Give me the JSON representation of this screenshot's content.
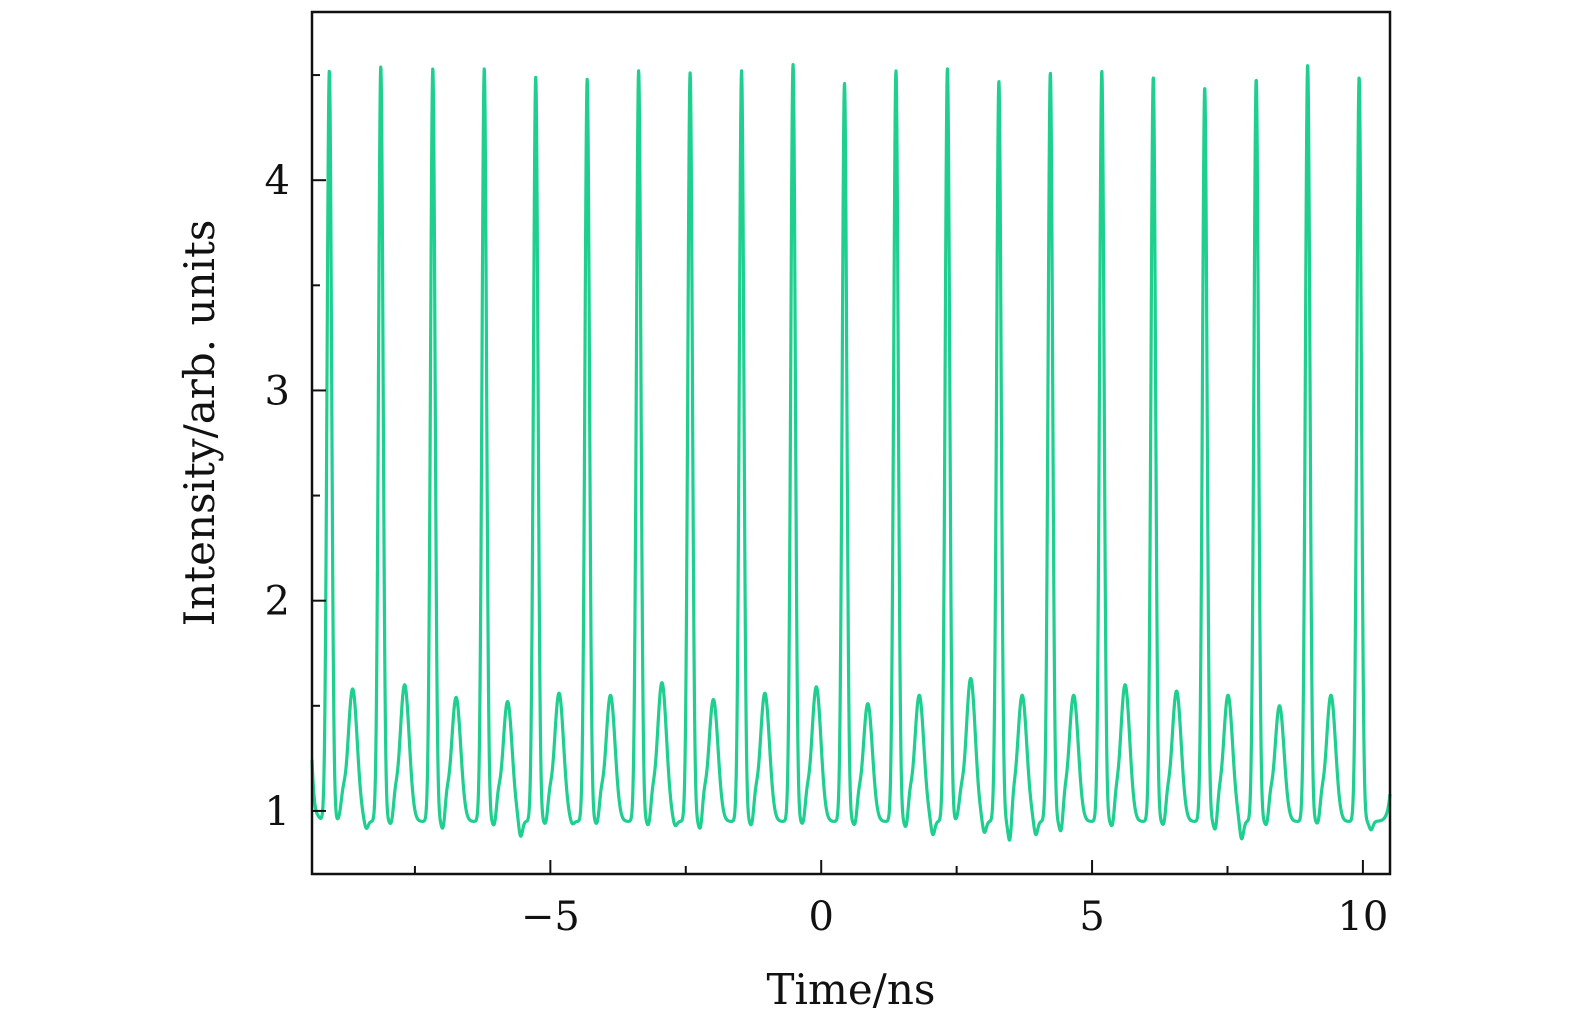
{
  "chart_data": {
    "type": "line",
    "title": "",
    "xlabel": "Time/ns",
    "ylabel": "Intensity/arb. units",
    "xlim": [
      -9.4,
      10.5
    ],
    "ylim": [
      0.7,
      4.8
    ],
    "grid": false,
    "legend": "none",
    "x_ticks": [
      -5,
      0,
      5,
      10
    ],
    "x_tick_labels": [
      "−5",
      "0",
      "5",
      "10"
    ],
    "x_minor_ticks": [
      -7.5,
      -2.5,
      2.5,
      7.5
    ],
    "y_ticks": [
      1,
      2,
      3,
      4
    ],
    "y_tick_labels": [
      "1",
      "2",
      "3",
      "4"
    ],
    "y_minor_ticks": [
      1.5,
      2.5,
      3.5,
      4.5
    ],
    "series": [
      {
        "name": "",
        "color": "#1ecf8f",
        "baseline": 0.95,
        "start_value": 1.25,
        "end_value": 1.08,
        "peaks": [
          {
            "x": -9.08,
            "value": 4.52
          },
          {
            "x": -8.13,
            "value": 4.54
          },
          {
            "x": -7.17,
            "value": 4.53
          },
          {
            "x": -6.22,
            "value": 4.53
          },
          {
            "x": -5.27,
            "value": 4.49
          },
          {
            "x": -4.32,
            "value": 4.48
          },
          {
            "x": -3.37,
            "value": 4.52
          },
          {
            "x": -2.42,
            "value": 4.51
          },
          {
            "x": -1.47,
            "value": 4.52
          },
          {
            "x": -0.52,
            "value": 4.55
          },
          {
            "x": 0.43,
            "value": 4.46
          },
          {
            "x": 1.38,
            "value": 4.52
          },
          {
            "x": 2.33,
            "value": 4.53
          },
          {
            "x": 3.28,
            "value": 4.47
          },
          {
            "x": 4.23,
            "value": 4.51
          },
          {
            "x": 5.18,
            "value": 4.52
          },
          {
            "x": 6.13,
            "value": 4.49
          },
          {
            "x": 7.08,
            "value": 4.44
          },
          {
            "x": 8.03,
            "value": 4.48
          },
          {
            "x": 8.98,
            "value": 4.55
          },
          {
            "x": 9.93,
            "value": 4.49
          }
        ],
        "secondary_peaks": [
          {
            "x": -8.65,
            "value": 1.58
          },
          {
            "x": -7.69,
            "value": 1.6
          },
          {
            "x": -6.74,
            "value": 1.54
          },
          {
            "x": -5.79,
            "value": 1.52
          },
          {
            "x": -4.84,
            "value": 1.56
          },
          {
            "x": -3.89,
            "value": 1.55
          },
          {
            "x": -2.94,
            "value": 1.61
          },
          {
            "x": -1.99,
            "value": 1.53
          },
          {
            "x": -1.04,
            "value": 1.56
          },
          {
            "x": -0.09,
            "value": 1.59
          },
          {
            "x": 0.86,
            "value": 1.51
          },
          {
            "x": 1.81,
            "value": 1.55
          },
          {
            "x": 2.76,
            "value": 1.63
          },
          {
            "x": 3.71,
            "value": 1.55
          },
          {
            "x": 4.66,
            "value": 1.55
          },
          {
            "x": 5.61,
            "value": 1.6
          },
          {
            "x": 6.56,
            "value": 1.57
          },
          {
            "x": 7.51,
            "value": 1.55
          },
          {
            "x": 8.46,
            "value": 1.5
          },
          {
            "x": 9.41,
            "value": 1.55
          }
        ],
        "troughs": [
          {
            "x": -9.35,
            "value": 0.93
          },
          {
            "x": -8.4,
            "value": 0.91
          },
          {
            "x": -7.92,
            "value": 0.91
          },
          {
            "x": -6.97,
            "value": 0.88
          },
          {
            "x": -6.02,
            "value": 0.9
          },
          {
            "x": -5.55,
            "value": 0.87
          },
          {
            "x": -5.07,
            "value": 0.91
          },
          {
            "x": -4.6,
            "value": 0.93
          },
          {
            "x": -4.12,
            "value": 0.91
          },
          {
            "x": -3.17,
            "value": 0.9
          },
          {
            "x": -2.7,
            "value": 0.92
          },
          {
            "x": -2.22,
            "value": 0.88
          },
          {
            "x": -1.27,
            "value": 0.9
          },
          {
            "x": -0.32,
            "value": 0.91
          },
          {
            "x": 0.64,
            "value": 0.89
          },
          {
            "x": 1.58,
            "value": 0.89
          },
          {
            "x": 2.06,
            "value": 0.88
          },
          {
            "x": 3.01,
            "value": 0.89
          },
          {
            "x": 3.49,
            "value": 0.8
          },
          {
            "x": 3.96,
            "value": 0.88
          },
          {
            "x": 4.44,
            "value": 0.85
          },
          {
            "x": 5.39,
            "value": 0.88
          },
          {
            "x": 6.34,
            "value": 0.89
          },
          {
            "x": 7.29,
            "value": 0.86
          },
          {
            "x": 7.76,
            "value": 0.86
          },
          {
            "x": 8.24,
            "value": 0.89
          },
          {
            "x": 9.19,
            "value": 0.9
          },
          {
            "x": 10.15,
            "value": 0.91
          }
        ]
      }
    ]
  }
}
